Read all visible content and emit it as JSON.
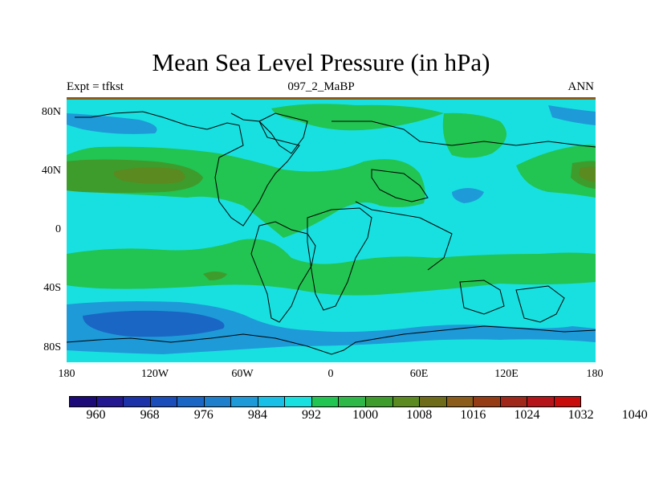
{
  "title": "Mean Sea Level Pressure (in hPa)",
  "left_subtitle": "Expt = tfkst",
  "center_subtitle": "097_2_MaBP",
  "right_subtitle": "ANN",
  "lat_labels": [
    "80N",
    "40N",
    "0",
    "40S",
    "80S"
  ],
  "lon_labels": [
    "180",
    "120W",
    "60W",
    "0",
    "60E",
    "120E",
    "180"
  ],
  "colorbar": {
    "colors": [
      "#1c0a78",
      "#241890",
      "#1c32a8",
      "#1a4cba",
      "#1a66c4",
      "#1e80cc",
      "#1e9ad8",
      "#18c0e8",
      "#18e0e0",
      "#22c452",
      "#2eb848",
      "#3e9c2c",
      "#5a8a20",
      "#6e6c18",
      "#8c5c1a",
      "#963c14",
      "#a0281a",
      "#b4141a",
      "#c80c0c"
    ],
    "labels": [
      "960",
      "968",
      "976",
      "984",
      "992",
      "1000",
      "1008",
      "1016",
      "1024",
      "1032",
      "1040"
    ]
  },
  "map_colors": {
    "c_976_984": "#1a66c4",
    "c_984_992": "#1e9ad8",
    "c_992_1000": "#18e0e0",
    "c_1000_1008": "#22c452",
    "c_1008_1016": "#3e9c2c",
    "c_1016_1024": "#5a8a20",
    "c_1024_1032": "#6e6c18",
    "frame_top": "#8c5c1a"
  }
}
